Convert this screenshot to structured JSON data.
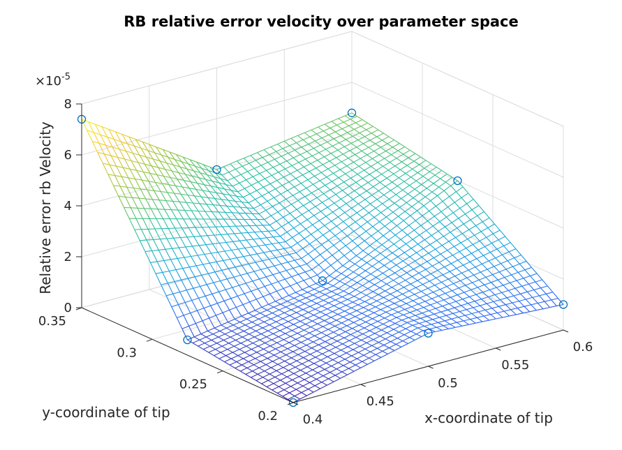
{
  "chart_data": {
    "type": "surface3d",
    "title": "RB relative error velocity over parameter space",
    "xlabel": "x-coordinate of tip",
    "ylabel": "y-coordinate of tip",
    "zlabel": "Relative error rb Velocity",
    "z_exponent_label": "×10",
    "z_exponent_power": "-5",
    "xlim": [
      0.4,
      0.6
    ],
    "ylim": [
      0.2,
      0.35
    ],
    "zlim": [
      0,
      8
    ],
    "x_ticks": [
      "0.4",
      "0.45",
      "0.5",
      "0.55",
      "0.6"
    ],
    "y_ticks": [
      "0.2",
      "0.25",
      "0.3",
      "0.35"
    ],
    "z_ticks": [
      "0",
      "2",
      "4",
      "6",
      "8"
    ],
    "x_tick_values": [
      0.4,
      0.45,
      0.5,
      0.55,
      0.6
    ],
    "y_tick_values": [
      0.2,
      0.25,
      0.3,
      0.35
    ],
    "z_tick_values": [
      0,
      2,
      4,
      6,
      8
    ],
    "grid": true,
    "colormap": [
      "#3e26a8",
      "#2c6cf6",
      "#1aa6e0",
      "#2dc0a1",
      "#8dc645",
      "#f3c73a",
      "#f9fb15"
    ],
    "marker_color": "#0072bd",
    "sample_points": {
      "x": [
        0.4,
        0.4,
        0.4,
        0.5,
        0.5,
        0.5,
        0.6,
        0.6,
        0.6
      ],
      "y": [
        0.2,
        0.275,
        0.35,
        0.2,
        0.275,
        0.35,
        0.2,
        0.275,
        0.35
      ],
      "z": [
        0.0,
        0.6,
        7.4,
        1.3,
        1.5,
        4.0,
        1.0,
        4.0,
        4.8
      ]
    }
  }
}
